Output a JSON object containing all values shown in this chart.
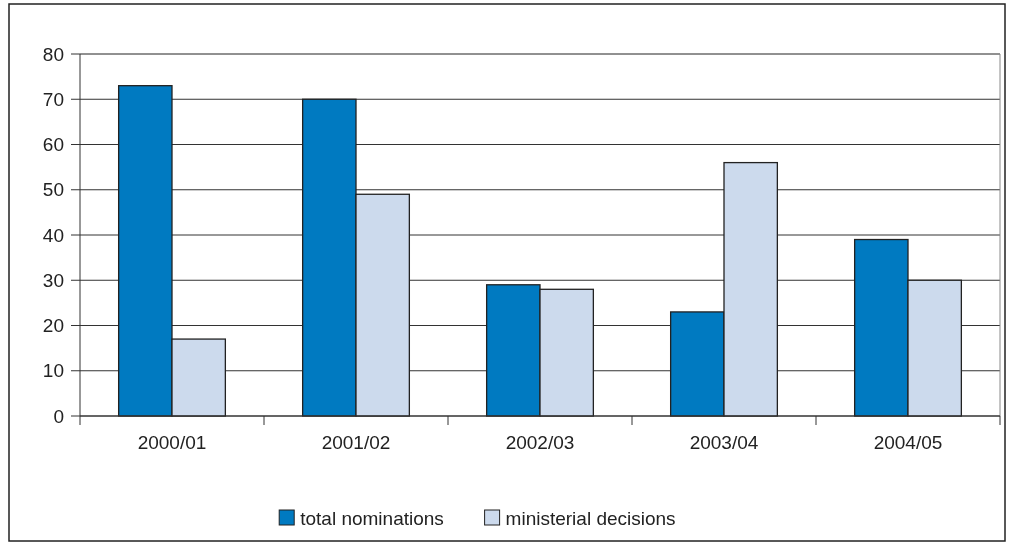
{
  "chart_data": {
    "type": "bar",
    "categories": [
      "2000/01",
      "2001/02",
      "2002/03",
      "2003/04",
      "2004/05"
    ],
    "series": [
      {
        "name": "total nominations",
        "color": "#007ac1",
        "values": [
          73,
          70,
          29,
          23,
          39
        ]
      },
      {
        "name": "ministerial decisions",
        "color": "#ccdaed",
        "values": [
          17,
          49,
          28,
          56,
          30
        ]
      }
    ],
    "ylim": [
      0,
      80
    ],
    "yticks": [
      0,
      10,
      20,
      30,
      40,
      50,
      60,
      70,
      80
    ],
    "grid": "y",
    "legend": "bottom"
  }
}
